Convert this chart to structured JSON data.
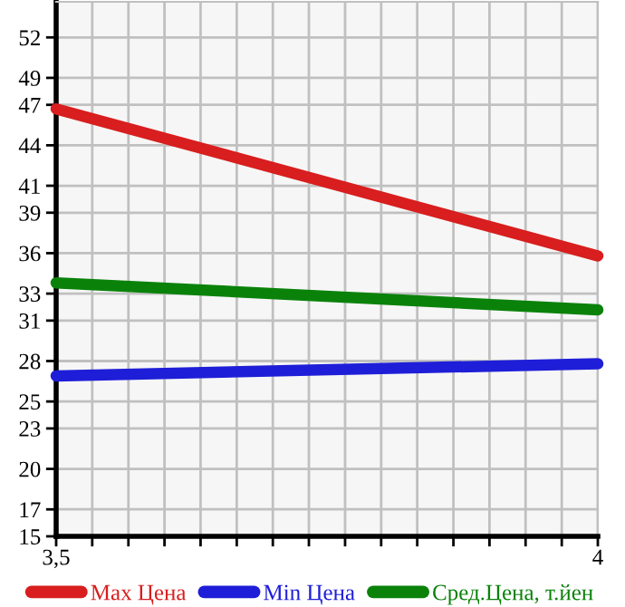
{
  "chart_data": {
    "type": "line",
    "x": [
      3.5,
      4
    ],
    "series": [
      {
        "name": "Max Цена",
        "color": "#d81e1e",
        "values": [
          46.7,
          35.8
        ]
      },
      {
        "name": "Min Цена",
        "color": "#1e1ed8",
        "values": [
          26.9,
          27.8
        ]
      },
      {
        "name": "Сред.Цена, т.йен",
        "color": "#0a820a",
        "values": [
          33.8,
          31.8
        ]
      }
    ],
    "xlim": [
      3.5,
      4
    ],
    "xticks": [
      {
        "value": 3.5,
        "label": "3,5"
      },
      {
        "value": 3.5333,
        "label": null
      },
      {
        "value": 3.5667,
        "label": null
      },
      {
        "value": 3.6,
        "label": null
      },
      {
        "value": 3.6333,
        "label": null
      },
      {
        "value": 3.6667,
        "label": null
      },
      {
        "value": 3.7,
        "label": null
      },
      {
        "value": 3.7333,
        "label": null
      },
      {
        "value": 3.7667,
        "label": null
      },
      {
        "value": 3.8,
        "label": null
      },
      {
        "value": 3.8333,
        "label": null
      },
      {
        "value": 3.8667,
        "label": null
      },
      {
        "value": 3.9,
        "label": null
      },
      {
        "value": 3.9333,
        "label": null
      },
      {
        "value": 3.9667,
        "label": null
      },
      4
    ],
    "ylim": [
      15,
      54.64
    ],
    "yticks": [
      15,
      17,
      20,
      23,
      25,
      28,
      31,
      33,
      36,
      39,
      41,
      44,
      47,
      49,
      52
    ],
    "grid": true,
    "legend": "bottom",
    "marker": "none",
    "line_style": "solid"
  }
}
